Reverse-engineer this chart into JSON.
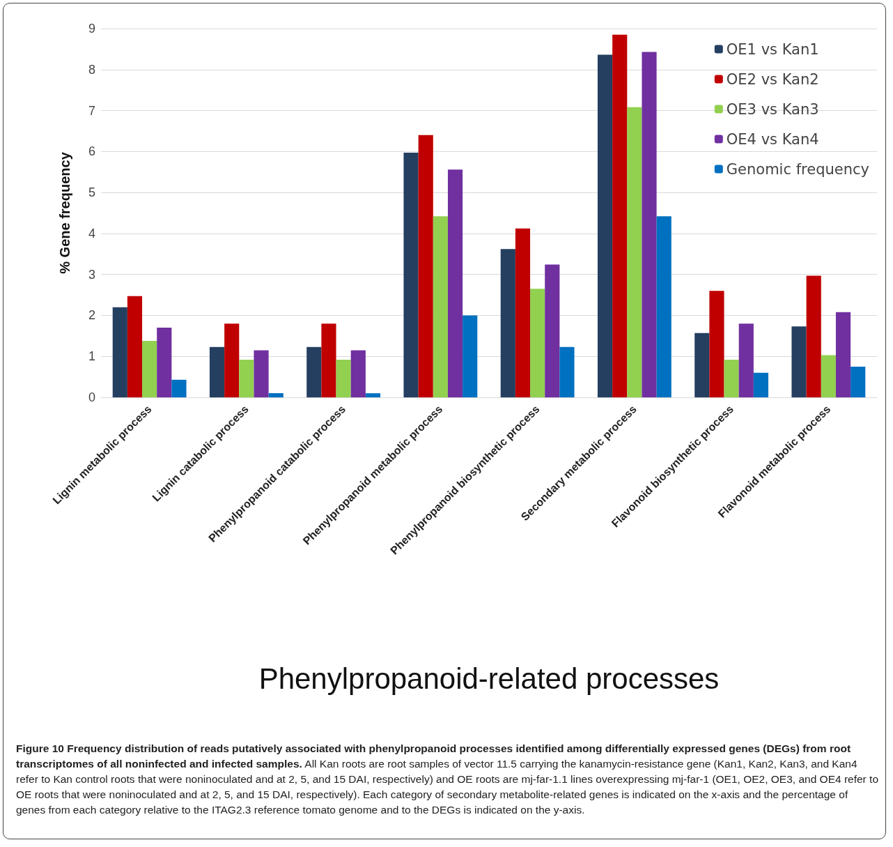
{
  "chart_data": {
    "type": "bar",
    "xlabel": "Phenylpropanoid-related processes",
    "ylabel": "% Gene frequency",
    "categories": [
      "Lignin metabolic process",
      "Lignin catabolic process",
      "Phenylpropanoid catabolic process",
      "Phenylpropanoid metabolic process",
      "Phenylpropanoid biosynthetic process",
      "Secondary metabolic process",
      "Flavonoid biosynthetic process",
      "Flavonoid metabolic process"
    ],
    "series": [
      {
        "name": "OE1 vs Kan1",
        "color": "#243f60",
        "values": [
          2.2,
          1.23,
          1.23,
          5.97,
          3.62,
          8.36,
          1.57,
          1.73
        ]
      },
      {
        "name": "OE2 vs Kan2",
        "color": "#c00000",
        "values": [
          2.47,
          1.8,
          1.8,
          6.4,
          4.12,
          8.85,
          2.6,
          2.97
        ]
      },
      {
        "name": "OE3 vs Kan3",
        "color": "#92d050",
        "values": [
          1.38,
          0.92,
          0.92,
          4.42,
          2.65,
          7.08,
          0.92,
          1.03
        ]
      },
      {
        "name": "OE4 vs Kan4",
        "color": "#7030a0",
        "values": [
          1.7,
          1.15,
          1.15,
          5.56,
          3.24,
          8.43,
          1.8,
          2.08
        ]
      },
      {
        "name": "Genomic frequency",
        "color": "#0070c0",
        "values": [
          0.43,
          0.1,
          0.1,
          2.0,
          1.23,
          4.42,
          0.6,
          0.75
        ]
      }
    ],
    "ylim": [
      0,
      9
    ],
    "yticks": [
      0,
      1,
      2,
      3,
      4,
      5,
      6,
      7,
      8,
      9
    ],
    "grid": "y",
    "legend": "top right",
    "annotations": [
      "Figure 10 Frequency distribution of reads putatively associated with phenylpropanoid processes identified among differentially expressed genes (DEGs) from root transcriptomes of all noninfected and infected samples.",
      "All Kan roots are root samples of vector 11.5 carrying the kanamycin-resistance gene (Kan1, Kan2, Kan3, and Kan4 refer to Kan control roots that were noninoculated and at 2, 5, and 15 DAI, respectively) and OE roots are mj-far-1.1 lines overexpressing mj-far-1 (OE1, OE2, OE3, and OE4 refer to OE roots that were noninoculated and at 2, 5, and 15 DAI, respectively). Each category of secondary metabolite-related genes is indicated on the x-axis and the percentage of genes from each category relative to the ITAG2.3 reference tomato genome and to the DEGs is indicated on the y-axis."
    ]
  }
}
